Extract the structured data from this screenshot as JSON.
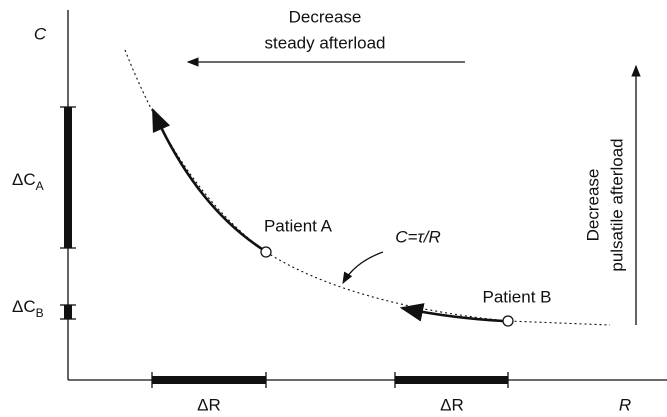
{
  "axes": {
    "y_label": "C",
    "x_label": "R"
  },
  "annotations": {
    "steady": {
      "line1": "Decrease",
      "line2": "steady afterload"
    },
    "pulsatile": {
      "line1": "Decrease",
      "line2": "pulsatile afterload"
    },
    "curve": "C=τ/R"
  },
  "patients": [
    {
      "label": "Patient A"
    },
    {
      "label": "Patient B"
    }
  ],
  "delta_c": [
    {
      "main": "ΔC",
      "sub": "A"
    },
    {
      "main": "ΔC",
      "sub": "B"
    }
  ],
  "delta_r": [
    "ΔR",
    "ΔR"
  ]
}
